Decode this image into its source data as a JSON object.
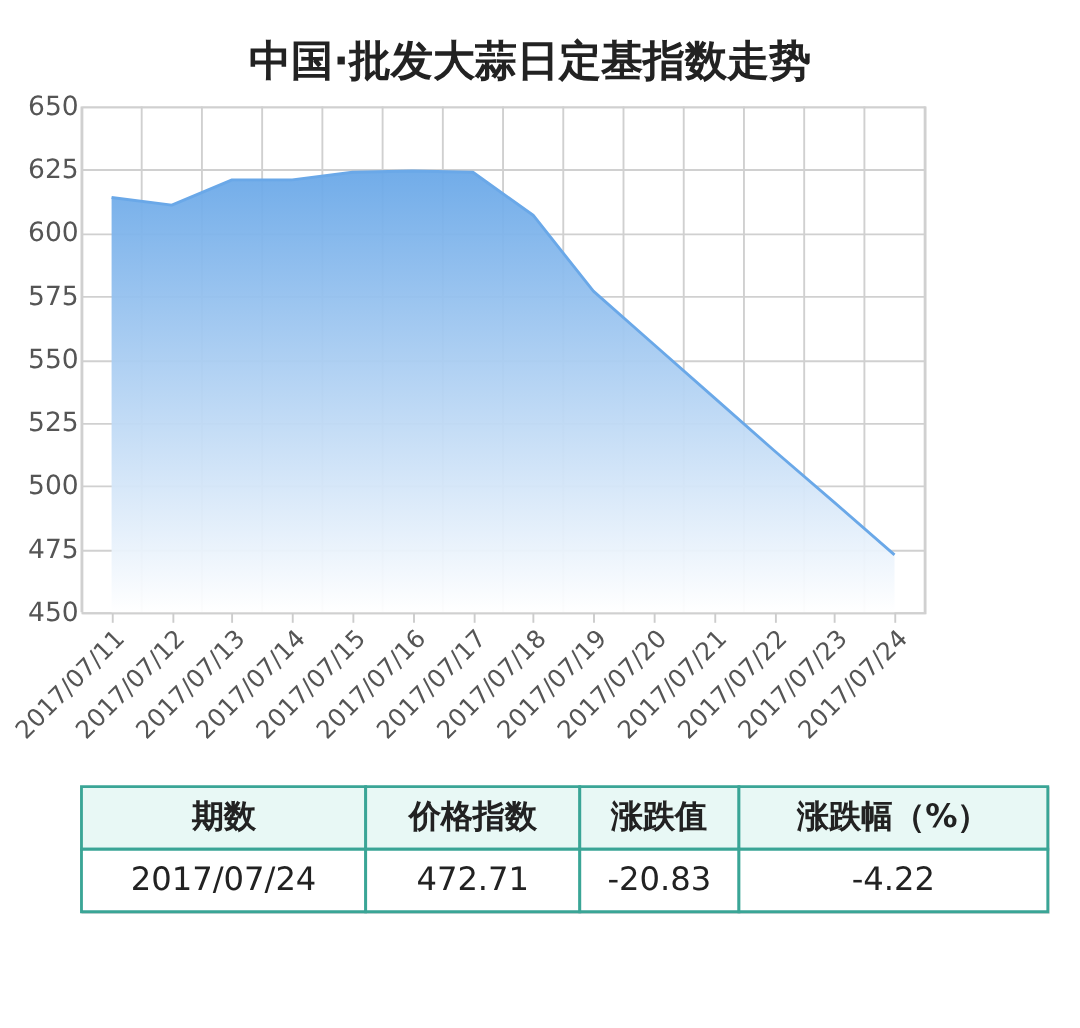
{
  "chart_data": {
    "type": "area",
    "title": "中国·批发大蒜日定基指数走势",
    "categories": [
      "2017/07/11",
      "2017/07/12",
      "2017/07/13",
      "2017/07/14",
      "2017/07/15",
      "2017/07/16",
      "2017/07/17",
      "2017/07/18",
      "2017/07/19",
      "2017/07/20",
      "2017/07/21",
      "2017/07/22",
      "2017/07/23",
      "2017/07/24"
    ],
    "series": [
      {
        "color": "#6aa8e8",
        "values": [
          614,
          611,
          621,
          621,
          624,
          624.5,
          624,
          607,
          577,
          556,
          535,
          514,
          493.5,
          472.71
        ]
      }
    ],
    "ylim": [
      450,
      650
    ],
    "yticks": [
      450,
      475,
      500,
      525,
      550,
      575,
      600,
      625,
      650
    ],
    "grid": true,
    "annotations": [
      "期数",
      "价格指数",
      "涨跌值",
      "涨跌幅（%）",
      "2017/07/24",
      "472.71",
      "-20.83",
      "-4.22"
    ]
  }
}
